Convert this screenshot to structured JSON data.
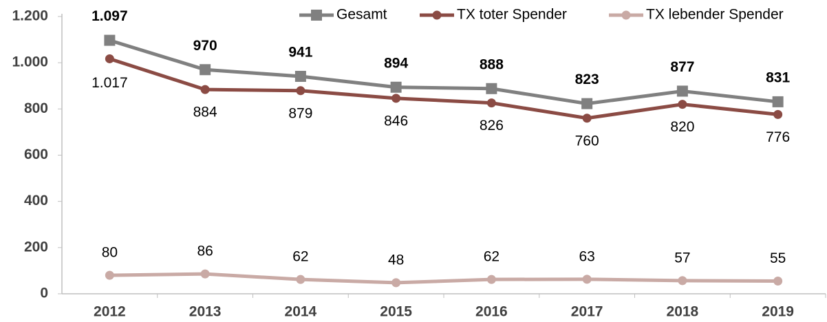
{
  "chart_data": {
    "type": "line",
    "categories": [
      "2012",
      "2013",
      "2014",
      "2015",
      "2016",
      "2017",
      "2018",
      "2019"
    ],
    "series": [
      {
        "name": "Gesamt",
        "color": "#808080",
        "marker": "square",
        "values": [
          1097,
          970,
          941,
          894,
          888,
          823,
          877,
          831
        ],
        "value_labels": [
          "1.097",
          "970",
          "941",
          "894",
          "888",
          "823",
          "877",
          "831"
        ]
      },
      {
        "name": "TX toter Spender",
        "color": "#8b4b44",
        "marker": "circle",
        "values": [
          1017,
          884,
          879,
          846,
          826,
          760,
          820,
          776
        ],
        "value_labels": [
          "1.017",
          "884",
          "879",
          "846",
          "826",
          "760",
          "820",
          "776"
        ]
      },
      {
        "name": "TX lebender Spender",
        "color": "#c9aaa5",
        "marker": "circle",
        "values": [
          80,
          86,
          62,
          48,
          62,
          63,
          57,
          55
        ]
      }
    ],
    "ylim": [
      0,
      1200
    ],
    "yticks": [
      0,
      200,
      400,
      600,
      800,
      {
        "value": 1000,
        "label": "1.000"
      },
      {
        "value": 1200,
        "label": "1.200"
      }
    ],
    "legend": "top-right"
  }
}
